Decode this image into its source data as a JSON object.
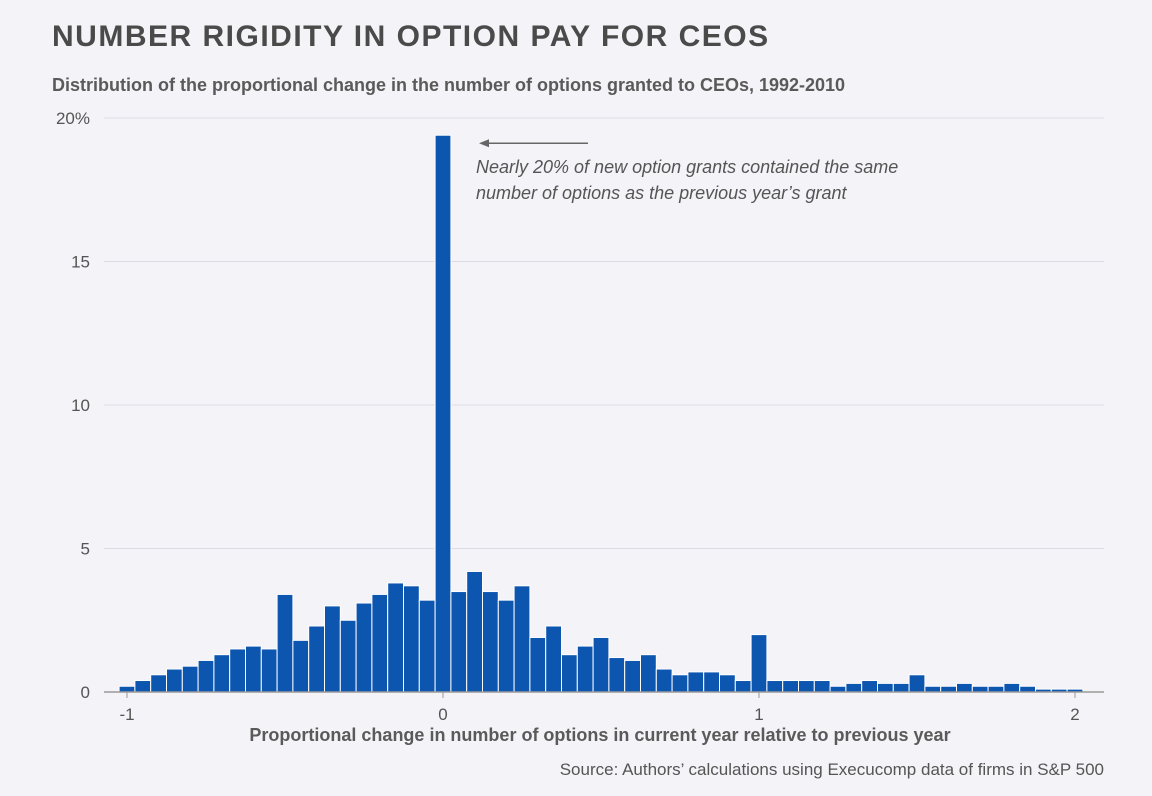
{
  "header": {
    "title": "NUMBER RIGIDITY IN OPTION PAY FOR CEOS",
    "subtitle": "Distribution of the proportional change in the number of options granted to CEOs, 1992-2010"
  },
  "footer": {
    "source": "Source: Authors’ calculations using Execucomp data of firms in S&P 500"
  },
  "colors": {
    "bar": "#0d56b0",
    "bar_stroke": "#ffffff",
    "grid": "#dcdce4",
    "axis": "#999999",
    "text": "#555555",
    "annotation": "#555555"
  },
  "chart_data": {
    "type": "bar",
    "title": "NUMBER RIGIDITY IN OPTION PAY FOR CEOS",
    "subtitle": "Distribution of the proportional change in the number of options granted to CEOs, 1992-2010",
    "xlabel": "Proportional change in number of options in current year relative to previous year",
    "ylabel": "",
    "xlim": [
      -1.05,
      2.1
    ],
    "ylim": [
      0,
      20
    ],
    "bin_width": 0.05,
    "grid": true,
    "y_ticks": [
      {
        "value": 0,
        "label": "0"
      },
      {
        "value": 5,
        "label": "5"
      },
      {
        "value": 10,
        "label": "10"
      },
      {
        "value": 15,
        "label": "15"
      },
      {
        "value": 20,
        "label": "20%"
      }
    ],
    "x_ticks": [
      {
        "value": -1,
        "label": "-1"
      },
      {
        "value": 0,
        "label": "0"
      },
      {
        "value": 1,
        "label": "1"
      },
      {
        "value": 2,
        "label": "2"
      }
    ],
    "bins": [
      {
        "x": -1.0,
        "value": 0.2
      },
      {
        "x": -0.95,
        "value": 0.4
      },
      {
        "x": -0.9,
        "value": 0.6
      },
      {
        "x": -0.85,
        "value": 0.8
      },
      {
        "x": -0.8,
        "value": 0.9
      },
      {
        "x": -0.75,
        "value": 1.1
      },
      {
        "x": -0.7,
        "value": 1.3
      },
      {
        "x": -0.65,
        "value": 1.5
      },
      {
        "x": -0.6,
        "value": 1.6
      },
      {
        "x": -0.55,
        "value": 1.5
      },
      {
        "x": -0.5,
        "value": 3.4
      },
      {
        "x": -0.45,
        "value": 1.8
      },
      {
        "x": -0.4,
        "value": 2.3
      },
      {
        "x": -0.35,
        "value": 3.0
      },
      {
        "x": -0.3,
        "value": 2.5
      },
      {
        "x": -0.25,
        "value": 3.1
      },
      {
        "x": -0.2,
        "value": 3.4
      },
      {
        "x": -0.15,
        "value": 3.8
      },
      {
        "x": -0.1,
        "value": 3.7
      },
      {
        "x": -0.05,
        "value": 3.2
      },
      {
        "x": 0.0,
        "value": 19.4
      },
      {
        "x": 0.05,
        "value": 3.5
      },
      {
        "x": 0.1,
        "value": 4.2
      },
      {
        "x": 0.15,
        "value": 3.5
      },
      {
        "x": 0.2,
        "value": 3.2
      },
      {
        "x": 0.25,
        "value": 3.7
      },
      {
        "x": 0.3,
        "value": 1.9
      },
      {
        "x": 0.35,
        "value": 2.3
      },
      {
        "x": 0.4,
        "value": 1.3
      },
      {
        "x": 0.45,
        "value": 1.6
      },
      {
        "x": 0.5,
        "value": 1.9
      },
      {
        "x": 0.55,
        "value": 1.2
      },
      {
        "x": 0.6,
        "value": 1.1
      },
      {
        "x": 0.65,
        "value": 1.3
      },
      {
        "x": 0.7,
        "value": 0.8
      },
      {
        "x": 0.75,
        "value": 0.6
      },
      {
        "x": 0.8,
        "value": 0.7
      },
      {
        "x": 0.85,
        "value": 0.7
      },
      {
        "x": 0.9,
        "value": 0.6
      },
      {
        "x": 0.95,
        "value": 0.4
      },
      {
        "x": 1.0,
        "value": 2.0
      },
      {
        "x": 1.05,
        "value": 0.4
      },
      {
        "x": 1.1,
        "value": 0.4
      },
      {
        "x": 1.15,
        "value": 0.4
      },
      {
        "x": 1.2,
        "value": 0.4
      },
      {
        "x": 1.25,
        "value": 0.2
      },
      {
        "x": 1.3,
        "value": 0.3
      },
      {
        "x": 1.35,
        "value": 0.4
      },
      {
        "x": 1.4,
        "value": 0.3
      },
      {
        "x": 1.45,
        "value": 0.3
      },
      {
        "x": 1.5,
        "value": 0.6
      },
      {
        "x": 1.55,
        "value": 0.2
      },
      {
        "x": 1.6,
        "value": 0.2
      },
      {
        "x": 1.65,
        "value": 0.3
      },
      {
        "x": 1.7,
        "value": 0.2
      },
      {
        "x": 1.75,
        "value": 0.2
      },
      {
        "x": 1.8,
        "value": 0.3
      },
      {
        "x": 1.85,
        "value": 0.2
      },
      {
        "x": 1.9,
        "value": 0.1
      },
      {
        "x": 1.95,
        "value": 0.1
      },
      {
        "x": 2.0,
        "value": 0.1
      }
    ],
    "annotation": {
      "lines": [
        "Nearly 20% of new option grants contained the same",
        "number of options as the previous year’s grant"
      ],
      "points_to_x": 0,
      "points_to_y": 19.4
    }
  }
}
